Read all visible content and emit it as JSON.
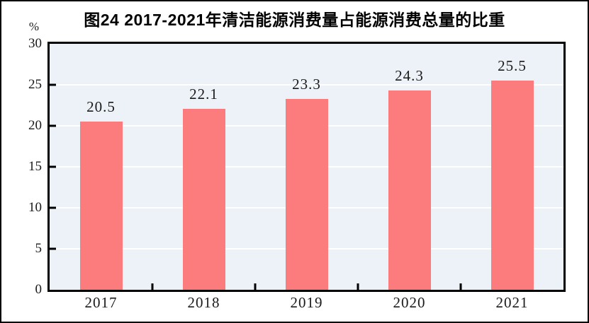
{
  "figure": {
    "title": "图24  2017-2021年清洁能源消费量占能源消费总量的比重",
    "unit_label": "%"
  },
  "chart_data": {
    "type": "bar",
    "title": "图24  2017-2021年清洁能源消费量占能源消费总量的比重",
    "categories": [
      "2017",
      "2018",
      "2019",
      "2020",
      "2021"
    ],
    "values": [
      20.5,
      22.1,
      23.3,
      24.3,
      25.5
    ],
    "data_labels": [
      "20.5",
      "22.1",
      "23.3",
      "24.3",
      "25.5"
    ],
    "xlabel": "",
    "ylabel": "%",
    "ylim": [
      0,
      30
    ],
    "yticks": [
      0,
      5,
      10,
      15,
      20,
      25,
      30
    ],
    "grid": "horizontal-white",
    "legend": "none",
    "colors": {
      "bar_fill": "#FC7B7D",
      "plot_background": "#EDF2F8",
      "gridline": "#FFFFFF",
      "axis_and_text": "#000000"
    }
  }
}
